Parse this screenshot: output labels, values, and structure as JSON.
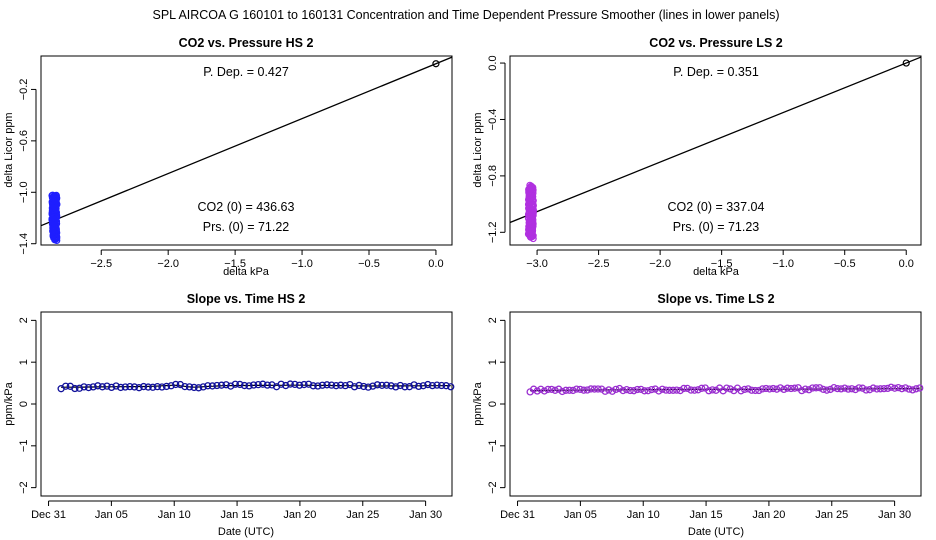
{
  "suptitle": "SPL    AIRCOA G    160101 to 160131    Concentration and Time Dependent Pressure Smoother (lines in lower panels)",
  "colors": {
    "hs": "#1f1fff",
    "ls": "#b030e0",
    "slope_hs": "#10109a",
    "slope_ls": "#9a2fd0",
    "line": "#000000",
    "axis": "#000000"
  },
  "chart_data": [
    {
      "type": "scatter",
      "id": "p1",
      "title": "CO2 vs. Pressure HS 2",
      "xlabel": "delta kPa",
      "ylabel": "delta Licor ppm",
      "xlim": [
        -2.95,
        0.12
      ],
      "ylim": [
        -1.41,
        0.06
      ],
      "xticks": [
        -2.5,
        -2.0,
        -1.5,
        -1.0,
        -0.5,
        0.0
      ],
      "xticklabels": [
        "−2.5",
        "−2.0",
        "−1.5",
        "−1.0",
        "−0.5",
        "0.0"
      ],
      "yticks": [
        -1.4,
        -1.0,
        -0.6,
        -0.2
      ],
      "yticklabels": [
        "−1.4",
        "−1.0",
        "−0.6",
        "−0.2"
      ],
      "annotations": {
        "pdep": "P. Dep. =  0.427",
        "co2": "CO2 (0) =  436.63",
        "prs": "Prs. (0) =  71.22"
      },
      "cluster": {
        "x_center": -2.85,
        "x_spread": 0.018,
        "y_min": -1.37,
        "y_max": -1.02
      },
      "origin_point": [
        0.0,
        0.0
      ],
      "fit_line": {
        "slope": 0.427,
        "intercept": 0.0
      }
    },
    {
      "type": "scatter",
      "id": "p2",
      "title": "CO2 vs. Pressure LS 2",
      "xlabel": "delta kPa",
      "ylabel": "delta Licor ppm",
      "xlim": [
        -3.22,
        0.12
      ],
      "ylim": [
        -1.29,
        0.05
      ],
      "xticks": [
        -3.0,
        -2.5,
        -2.0,
        -1.5,
        -1.0,
        -0.5,
        0.0
      ],
      "xticklabels": [
        "−3.0",
        "−2.5",
        "−2.0",
        "−1.5",
        "−1.0",
        "−0.5",
        "0.0"
      ],
      "yticks": [
        -1.2,
        -0.8,
        -0.4,
        0.0
      ],
      "yticklabels": [
        "−1.2",
        "−0.8",
        "−0.4",
        "0.0"
      ],
      "annotations": {
        "pdep": "P. Dep. =  0.351",
        "co2": "CO2 (0) =  337.04",
        "prs": "Prs. (0) =  71.23"
      },
      "cluster": {
        "x_center": -3.05,
        "x_spread": 0.02,
        "y_min": -1.24,
        "y_max": -0.87
      },
      "origin_point": [
        0.0,
        0.0
      ],
      "fit_line": {
        "slope": 0.351,
        "intercept": 0.0
      }
    },
    {
      "type": "line",
      "id": "p3",
      "title": "Slope vs. Time HS 2",
      "xlabel": "Date (UTC)",
      "ylabel": "ppm/kPa",
      "xlim": [
        -0.6,
        32.1
      ],
      "ylim": [
        -2.2,
        2.2
      ],
      "xticks": [
        0,
        5,
        10,
        15,
        20,
        25,
        30
      ],
      "xticklabels": [
        "Dec 31",
        "Jan 05",
        "Jan 10",
        "Jan 15",
        "Jan 20",
        "Jan 25",
        "Jan 30"
      ],
      "yticks": [
        -2,
        -1,
        0,
        1,
        2
      ],
      "yticklabels": [
        "−2",
        "−1",
        "0",
        "1",
        "2"
      ],
      "series": {
        "start_day": 1.0,
        "end_day": 32.0,
        "n": 86,
        "base": 0.43,
        "ripple": 0.035,
        "smooth": [
          [
            1.0,
            0.4
          ],
          [
            8.0,
            0.42
          ],
          [
            10.0,
            0.45
          ],
          [
            11.5,
            0.4
          ],
          [
            14.0,
            0.44
          ],
          [
            20.0,
            0.45
          ],
          [
            26.0,
            0.43
          ],
          [
            32.0,
            0.44
          ]
        ]
      }
    },
    {
      "type": "line",
      "id": "p4",
      "title": "Slope vs. Time LS 2",
      "xlabel": "Date (UTC)",
      "ylabel": "ppm/kPa",
      "xlim": [
        -0.6,
        32.1
      ],
      "ylim": [
        -2.2,
        2.2
      ],
      "xticks": [
        0,
        5,
        10,
        15,
        20,
        25,
        30
      ],
      "xticklabels": [
        "Dec 31",
        "Jan 05",
        "Jan 10",
        "Jan 15",
        "Jan 20",
        "Jan 25",
        "Jan 30"
      ],
      "yticks": [
        -2,
        -1,
        0,
        1,
        2
      ],
      "yticklabels": [
        "−2",
        "−1",
        "0",
        "1",
        "2"
      ],
      "series": {
        "start_day": 1.0,
        "end_day": 32.0,
        "n": 110,
        "base": 0.35,
        "ripple": 0.035,
        "smooth": [
          [
            1.0,
            0.32
          ],
          [
            8.0,
            0.34
          ],
          [
            15.0,
            0.35
          ],
          [
            20.0,
            0.35
          ],
          [
            26.0,
            0.36
          ],
          [
            32.0,
            0.37
          ]
        ]
      }
    }
  ]
}
